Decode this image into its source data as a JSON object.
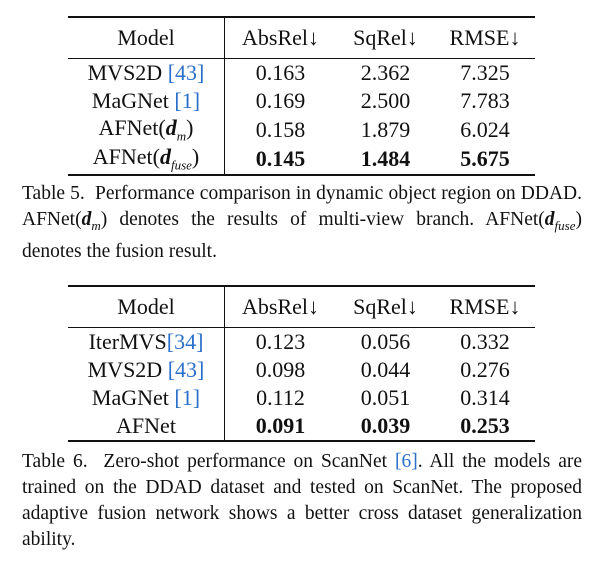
{
  "table5": {
    "columns": [
      "Model",
      "AbsRel↓",
      "SqRel↓",
      "RMSE↓"
    ],
    "rows": [
      {
        "model": "MVS2D",
        "cite": "[43]",
        "suffix": "",
        "values": [
          "0.163",
          "2.362",
          "7.325"
        ],
        "bold": false
      },
      {
        "model": "MaGNet",
        "cite": "[1]",
        "suffix": "",
        "values": [
          "0.169",
          "2.500",
          "7.783"
        ],
        "bold": false
      },
      {
        "model": "AFNet(",
        "sym": "d",
        "sub": "m",
        "suffix": ")",
        "values": [
          "0.158",
          "1.879",
          "6.024"
        ],
        "bold": false
      },
      {
        "model": "AFNet(",
        "sym": "d",
        "sub": "fuse",
        "suffix": ")",
        "values": [
          "0.145",
          "1.484",
          "5.675"
        ],
        "bold": true
      }
    ],
    "caption": {
      "label": "Table 5.",
      "text_1": "Performance comparison in dynamic object region on DDAD. AFNet(",
      "sym_1": "d",
      "sub_1": "m",
      "text_2": ") denotes the results of multi-view branch. AFNet(",
      "sym_2": "d",
      "sub_2": "fuse",
      "text_3": ") denotes the fusion result."
    }
  },
  "table6": {
    "columns": [
      "Model",
      "AbsRel↓",
      "SqRel↓",
      "RMSE↓"
    ],
    "rows": [
      {
        "model": "IterMVS",
        "cite": "[34]",
        "values": [
          "0.123",
          "0.056",
          "0.332"
        ],
        "bold": false
      },
      {
        "model": "MVS2D",
        "cite": "[43]",
        "values": [
          "0.098",
          "0.044",
          "0.276"
        ],
        "bold": false
      },
      {
        "model": "MaGNet",
        "cite": "[1]",
        "values": [
          "0.112",
          "0.051",
          "0.314"
        ],
        "bold": false
      },
      {
        "model": "AFNet",
        "cite": "",
        "values": [
          "0.091",
          "0.039",
          "0.253"
        ],
        "bold": true
      }
    ],
    "caption": {
      "label": "Table 6.",
      "text_1": "Zero-shot performance on ScanNet",
      "cite": "[6]",
      "text_2": ". All the models are trained on the DDAD dataset and tested on ScanNet. The proposed adaptive fusion network shows a better cross dataset generalization ability."
    }
  }
}
